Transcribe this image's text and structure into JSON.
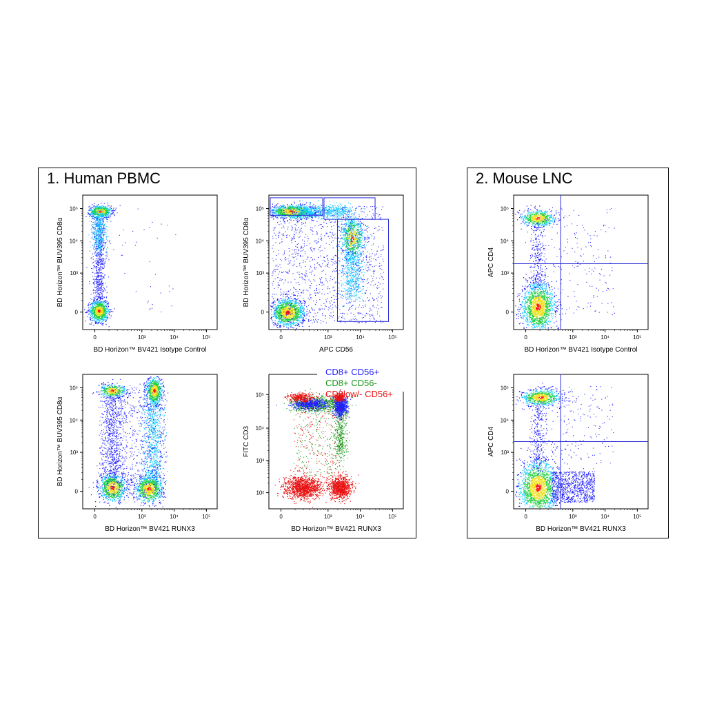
{
  "panel1": {
    "title": "1. Human PBMC"
  },
  "panel2": {
    "title": "2. Mouse LNC"
  },
  "colors": {
    "blue": "#1f1fff",
    "green": "#1a9a1a",
    "red": "#e81010",
    "gate": "#2a2ad8"
  },
  "chart_data": [
    {
      "id": "p1a",
      "type": "scatter",
      "panel": "1. Human PBMC",
      "xlabel": "BD Horizon™ BV421  Isotype Control",
      "ylabel": "BD Horizon™ BUV395 CD8α",
      "xticks": [
        "0",
        "10³",
        "10⁴",
        "10⁵"
      ],
      "yticks": [
        "0",
        "10³",
        "10⁴",
        "10⁵"
      ],
      "gates": []
    },
    {
      "id": "p1b",
      "type": "scatter",
      "panel": "1. Human PBMC",
      "xlabel": "APC  CD56",
      "ylabel": "BD Horizon™ BUV395 CD8α",
      "xticks": [
        "0",
        "10³",
        "10⁴",
        "10⁵"
      ],
      "yticks": [
        "0",
        "10³",
        "10⁴",
        "10⁵"
      ],
      "gates": [
        "rect",
        "rect",
        "rect"
      ]
    },
    {
      "id": "p1c",
      "type": "scatter",
      "panel": "1. Human PBMC",
      "xlabel": "BD Horizon™ BV421  RUNX3",
      "ylabel": "BD Horizon™ BUV395 CD8α",
      "xticks": [
        "0",
        "10³",
        "10⁴",
        "10⁵"
      ],
      "yticks": [
        "0",
        "10³",
        "10⁴",
        "10⁵"
      ],
      "gates": []
    },
    {
      "id": "p1d",
      "type": "scatter",
      "panel": "1. Human PBMC",
      "xlabel": "BD Horizon™ BV421  RUNX3",
      "ylabel": "FITC  CD3",
      "xticks": [
        "0",
        "10³",
        "10⁴",
        "10⁵"
      ],
      "yticks": [
        "10²",
        "10³",
        "10⁴",
        "10⁵"
      ],
      "legend": [
        {
          "label": "CD8+ CD56+",
          "color": "#1f1fff"
        },
        {
          "label": "CD8+ CD56-",
          "color": "#1a9a1a"
        },
        {
          "label": "CD8low/- CD56+",
          "color": "#e81010"
        }
      ]
    },
    {
      "id": "p2a",
      "type": "scatter",
      "panel": "2. Mouse LNC",
      "xlabel": "BD Horizon™ BV421  Isotype Control",
      "ylabel": "APC  CD4",
      "xticks": [
        "0",
        "10³",
        "10⁴",
        "10⁵"
      ],
      "yticks": [
        "0",
        "10³",
        "10⁴",
        "10⁵"
      ],
      "gates": [
        "quadrant"
      ]
    },
    {
      "id": "p2b",
      "type": "scatter",
      "panel": "2. Mouse LNC",
      "xlabel": "BD Horizon™ BV421  RUNX3",
      "ylabel": "APC  CD4",
      "xticks": [
        "0",
        "10³",
        "10⁴",
        "10⁵"
      ],
      "yticks": [
        "0",
        "10³",
        "10⁴",
        "10⁵"
      ],
      "gates": [
        "quadrant"
      ]
    }
  ]
}
